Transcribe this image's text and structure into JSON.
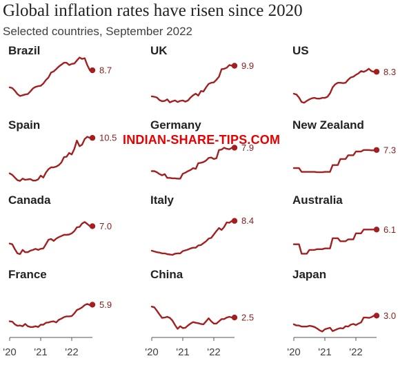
{
  "title": "Global inflation rates have risen since 2020",
  "subtitle": "Selected countries, September 2022",
  "watermark": "INDIAN-SHARE-TIPS.COM",
  "colors": {
    "line": "#a31f1f",
    "label": "#8a1a1a",
    "axis": "#555555"
  },
  "chart_data": {
    "type": "line",
    "layout": "small-multiples-4x3",
    "x_tick_labels": [
      "'20",
      "'21",
      "'22"
    ],
    "x_range": [
      "2020-01",
      "2022-09"
    ],
    "y_range": [
      -1.5,
      12
    ],
    "grid": false,
    "legend": "none",
    "series": [
      {
        "name": "Brazil",
        "end_label": "8.7",
        "values": [
          4.2,
          4.0,
          3.3,
          2.4,
          1.9,
          2.1,
          2.3,
          2.4,
          3.1,
          3.9,
          4.3,
          4.5,
          4.6,
          5.2,
          6.1,
          6.8,
          8.1,
          8.4,
          9.0,
          9.7,
          10.2,
          10.7,
          10.7,
          10.1,
          10.4,
          10.5,
          11.3,
          12.1,
          11.7,
          11.9,
          10.1,
          8.7,
          8.7
        ]
      },
      {
        "name": "UK",
        "end_label": "9.9",
        "values": [
          1.8,
          1.7,
          1.5,
          0.8,
          0.5,
          0.6,
          1.0,
          0.2,
          0.5,
          0.7,
          0.3,
          0.6,
          0.7,
          0.4,
          0.7,
          1.5,
          2.1,
          2.5,
          2.0,
          3.2,
          3.1,
          4.2,
          5.1,
          5.4,
          5.5,
          6.2,
          7.0,
          9.0,
          9.1,
          9.4,
          10.1,
          9.9,
          9.9
        ]
      },
      {
        "name": "US",
        "end_label": "8.3",
        "values": [
          2.5,
          2.3,
          1.5,
          0.3,
          0.1,
          0.6,
          1.0,
          1.3,
          1.4,
          1.2,
          1.2,
          1.4,
          1.4,
          1.7,
          2.6,
          4.2,
          5.0,
          5.4,
          5.4,
          5.3,
          5.4,
          6.2,
          6.8,
          7.0,
          7.5,
          7.9,
          8.5,
          8.3,
          8.6,
          9.1,
          8.5,
          8.3,
          8.3
        ]
      },
      {
        "name": "Spain",
        "end_label": "10.5",
        "values": [
          1.1,
          0.7,
          0.0,
          -0.7,
          -0.9,
          -0.3,
          -0.6,
          -0.5,
          -0.4,
          -0.8,
          -0.8,
          -0.5,
          0.5,
          0.0,
          1.3,
          2.2,
          2.7,
          2.7,
          2.9,
          3.3,
          4.0,
          5.4,
          5.5,
          6.5,
          6.1,
          7.6,
          9.8,
          8.3,
          8.7,
          10.2,
          10.8,
          10.5,
          10.5
        ]
      },
      {
        "name": "Germany",
        "end_label": "7.9",
        "values": [
          1.7,
          1.7,
          1.4,
          0.9,
          0.6,
          0.9,
          -0.1,
          -0.1,
          -0.2,
          -0.2,
          -0.3,
          -0.3,
          1.0,
          1.3,
          1.7,
          2.0,
          2.5,
          2.3,
          3.8,
          3.9,
          4.1,
          4.5,
          5.2,
          5.3,
          4.9,
          5.1,
          7.3,
          7.4,
          7.9,
          7.6,
          7.5,
          7.9,
          7.9
        ]
      },
      {
        "name": "New Zealand",
        "end_label": "7.3",
        "values": [
          2.5,
          2.5,
          2.5,
          1.5,
          1.5,
          1.5,
          1.5,
          1.5,
          1.5,
          1.4,
          1.4,
          1.4,
          1.5,
          1.5,
          1.5,
          3.3,
          3.3,
          3.3,
          4.9,
          4.9,
          4.9,
          5.9,
          5.9,
          5.9,
          6.9,
          6.9,
          6.9,
          7.3,
          7.3,
          7.3,
          7.2,
          7.2,
          7.3
        ]
      },
      {
        "name": "Canada",
        "end_label": "7.0",
        "values": [
          2.4,
          2.2,
          0.9,
          -0.2,
          -0.4,
          0.7,
          0.1,
          0.1,
          0.5,
          0.7,
          1.0,
          0.7,
          1.0,
          1.1,
          2.2,
          3.4,
          3.6,
          3.1,
          3.7,
          4.1,
          4.4,
          4.7,
          4.7,
          4.8,
          5.1,
          5.7,
          6.7,
          6.8,
          7.7,
          8.1,
          7.6,
          7.0,
          7.0
        ]
      },
      {
        "name": "Italy",
        "end_label": "8.4",
        "values": [
          0.5,
          0.3,
          0.1,
          0.0,
          -0.2,
          -0.2,
          -0.4,
          -0.5,
          -0.6,
          -0.3,
          -0.2,
          -0.2,
          0.4,
          0.6,
          0.8,
          1.1,
          1.3,
          1.3,
          1.9,
          2.0,
          2.5,
          3.0,
          3.7,
          3.9,
          4.8,
          5.7,
          6.5,
          6.0,
          6.8,
          8.0,
          7.9,
          8.4,
          8.4
        ]
      },
      {
        "name": "Australia",
        "end_label": "6.1",
        "values": [
          2.2,
          2.2,
          2.2,
          -0.3,
          -0.3,
          -0.3,
          0.7,
          0.7,
          0.7,
          0.9,
          0.9,
          0.9,
          1.1,
          1.1,
          1.1,
          3.8,
          3.8,
          3.8,
          3.0,
          3.0,
          3.0,
          3.5,
          3.5,
          3.5,
          5.1,
          5.1,
          5.1,
          6.1,
          6.1,
          6.1,
          6.1,
          6.1,
          6.1
        ]
      },
      {
        "name": "France",
        "end_label": "5.9",
        "values": [
          1.5,
          1.4,
          0.7,
          0.3,
          0.4,
          0.2,
          0.8,
          0.2,
          0.0,
          0.0,
          0.2,
          0.0,
          0.6,
          0.6,
          1.1,
          1.2,
          1.4,
          1.5,
          1.2,
          1.9,
          2.2,
          2.6,
          2.8,
          2.8,
          2.9,
          3.6,
          4.5,
          4.8,
          5.2,
          5.8,
          6.1,
          5.8,
          5.9
        ]
      },
      {
        "name": "China",
        "end_label": "2.5",
        "values": [
          5.4,
          5.2,
          4.3,
          3.3,
          2.4,
          2.5,
          2.7,
          2.4,
          1.7,
          0.5,
          -0.5,
          0.2,
          -0.3,
          -0.2,
          0.4,
          0.9,
          1.3,
          1.1,
          1.0,
          0.8,
          0.7,
          1.5,
          2.3,
          1.5,
          0.9,
          0.9,
          1.5,
          2.1,
          2.1,
          2.5,
          2.7,
          2.5,
          2.5
        ]
      },
      {
        "name": "Japan",
        "end_label": "3.0",
        "values": [
          0.7,
          0.4,
          0.4,
          0.1,
          0.1,
          0.1,
          0.3,
          0.2,
          0.0,
          -0.4,
          -0.9,
          -1.2,
          -0.6,
          -0.4,
          -0.2,
          -1.1,
          -0.8,
          -0.5,
          -0.3,
          -0.4,
          0.2,
          0.1,
          0.6,
          0.8,
          0.5,
          0.9,
          1.2,
          2.5,
          2.5,
          2.4,
          2.6,
          3.0,
          3.0
        ]
      }
    ]
  }
}
